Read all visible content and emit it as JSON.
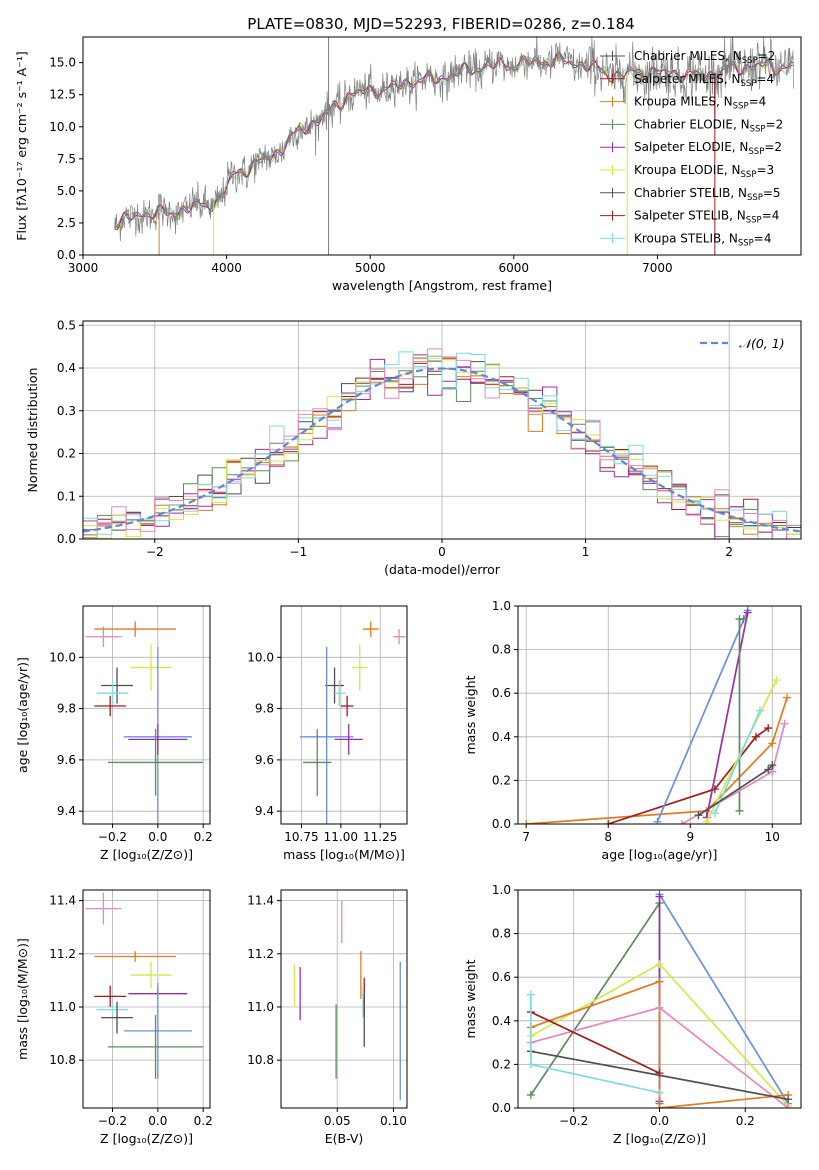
{
  "figure_title": "PLATE=0830, MJD=52293, FIBERID=0286, z=0.184",
  "colors": {
    "MILES_Chabrier": "#4f4f4f",
    "MILES_Salpeter": "#a01d1d",
    "MILES_Kroupa": "#e07b22",
    "ELODIE_Chabrier": "#5f8a5f",
    "ELODIE_Salpeter": "#9a2ca8",
    "ELODIE_Kroupa": "#d4e84a",
    "STELIB_Chabrier": "#555555",
    "STELIB_Salpeter": "#a01d1d",
    "STELIB_Kroupa": "#7fdadf",
    "gauss": "#5b88d8",
    "pink": "#e487c0",
    "blue": "#6a8fe0"
  },
  "chart_data": [
    {
      "id": "spectrum",
      "type": "line",
      "title": "PLATE=0830, MJD=52293, FIBERID=0286, z=0.184",
      "xlabel": "wavelength [Angstrom, rest frame]",
      "ylabel": "Flux [fλ10⁻¹⁷ erg cm⁻² s⁻¹ A⁻¹]",
      "xlim": [
        3000,
        8000
      ],
      "ylim": [
        0,
        17
      ],
      "xticks": [
        "3000",
        "4000",
        "5000",
        "6000",
        "7000"
      ],
      "yticks": [
        "0.0",
        "2.5",
        "5.0",
        "7.5",
        "10.0",
        "12.5",
        "15.0"
      ],
      "legend_position": "right",
      "legend": [
        {
          "label": "Chabrier MILES, N",
          "sub": "SSP",
          "suffix": "=2",
          "color": "#4f4f4f"
        },
        {
          "label": "Salpeter MILES, N",
          "sub": "SSP",
          "suffix": "=4",
          "color": "#a01d1d"
        },
        {
          "label": "Kroupa MILES, N",
          "sub": "SSP",
          "suffix": "=4",
          "color": "#e07b22"
        },
        {
          "label": "Chabrier ELODIE, N",
          "sub": "SSP",
          "suffix": "=2",
          "color": "#5f8a5f"
        },
        {
          "label": "Salpeter ELODIE, N",
          "sub": "SSP",
          "suffix": "=2",
          "color": "#9a2ca8"
        },
        {
          "label": "Kroupa ELODIE, N",
          "sub": "SSP",
          "suffix": "=3",
          "color": "#d4e84a"
        },
        {
          "label": "Chabrier STELIB, N",
          "sub": "SSP",
          "suffix": "=5",
          "color": "#555555"
        },
        {
          "label": "Salpeter STELIB, N",
          "sub": "SSP",
          "suffix": "=4",
          "color": "#a01d1d"
        },
        {
          "label": "Kroupa STELIB, N",
          "sub": "SSP",
          "suffix": "=4",
          "color": "#7fdadf"
        }
      ],
      "continuum": [
        [
          3220,
          2.4
        ],
        [
          3400,
          3.2
        ],
        [
          3600,
          3.3
        ],
        [
          3800,
          3.8
        ],
        [
          3950,
          4.2
        ],
        [
          4050,
          6.3
        ],
        [
          4200,
          7.0
        ],
        [
          4350,
          8.0
        ],
        [
          4500,
          9.6
        ],
        [
          4700,
          11.0
        ],
        [
          4850,
          12.5
        ],
        [
          5000,
          12.8
        ],
        [
          5150,
          13.0
        ],
        [
          5300,
          13.6
        ],
        [
          5500,
          13.8
        ],
        [
          5700,
          14.5
        ],
        [
          5900,
          14.8
        ],
        [
          6100,
          15.0
        ],
        [
          6300,
          15.2
        ],
        [
          6500,
          14.8
        ],
        [
          6700,
          14.0
        ],
        [
          6900,
          14.3
        ],
        [
          7100,
          14.2
        ],
        [
          7300,
          13.9
        ],
        [
          7500,
          14.5
        ],
        [
          7700,
          14.8
        ],
        [
          7900,
          14.6
        ]
      ]
    },
    {
      "id": "residual_hist",
      "type": "histogram",
      "xlabel": "(data-model)/error",
      "ylabel": "Normed distribution",
      "xlim": [
        -2.5,
        2.5
      ],
      "ylim": [
        0,
        0.51
      ],
      "xticks": [
        "−2",
        "−1",
        "0",
        "1",
        "2"
      ],
      "yticks": [
        "0.0",
        "0.1",
        "0.2",
        "0.3",
        "0.4",
        "0.5"
      ],
      "legend_label": "𝒩(0, 1)",
      "legend_position": "top-right",
      "bin_width": 0.1
    },
    {
      "id": "age_vs_Z",
      "type": "scatter",
      "xlabel": "Z [log₁₀(Z/Z⊙)]",
      "ylabel": "age  [log₁₀(age/yr)]",
      "xlim": [
        -0.33,
        0.23
      ],
      "ylim": [
        9.35,
        10.2
      ],
      "xticks": [
        "−0.2",
        "0.0",
        "0.2"
      ],
      "yticks": [
        "9.4",
        "9.6",
        "9.8",
        "10.0"
      ],
      "points": [
        {
          "x": -0.24,
          "y": 10.08,
          "xerr": 0.08,
          "yerr": 0.04,
          "color": "#e487c0"
        },
        {
          "x": -0.1,
          "y": 10.11,
          "xerr": 0.18,
          "yerr": 0.03,
          "color": "#e07b22"
        },
        {
          "x": -0.03,
          "y": 9.96,
          "xerr": 0.09,
          "yerr": 0.09,
          "color": "#d4e84a"
        },
        {
          "x": -0.18,
          "y": 9.89,
          "xerr": 0.07,
          "yerr": 0.07,
          "color": "#4f4f4f"
        },
        {
          "x": -0.2,
          "y": 9.86,
          "xerr": 0.07,
          "yerr": 0.05,
          "color": "#7fdadf"
        },
        {
          "x": -0.21,
          "y": 9.81,
          "xerr": 0.07,
          "yerr": 0.04,
          "color": "#a01d1d"
        },
        {
          "x": 0.0,
          "y": 9.69,
          "xerr": 0.15,
          "yerr": 0.35,
          "color": "#6a8fe0"
        },
        {
          "x": 0.0,
          "y": 9.68,
          "xerr": 0.13,
          "yerr": 0.06,
          "color": "#9a2ca8"
        },
        {
          "x": -0.01,
          "y": 9.59,
          "xerr": 0.21,
          "yerr": 0.13,
          "color": "#5f8a5f"
        }
      ]
    },
    {
      "id": "age_vs_mass",
      "type": "scatter",
      "xlabel": "mass [log₁₀(M/M⊙)]",
      "ylabel": "",
      "xlim": [
        10.62,
        11.42
      ],
      "ylim": [
        9.35,
        10.2
      ],
      "xticks": [
        "10.75",
        "11.00",
        "11.25"
      ],
      "yticks": [
        "9.4",
        "9.6",
        "9.8",
        "10.0"
      ],
      "points": [
        {
          "x": 11.37,
          "y": 10.08,
          "xerr": 0.04,
          "yerr": 0.03,
          "color": "#e487c0"
        },
        {
          "x": 11.19,
          "y": 10.11,
          "xerr": 0.05,
          "yerr": 0.03,
          "color": "#e07b22"
        },
        {
          "x": 11.12,
          "y": 9.96,
          "xerr": 0.05,
          "yerr": 0.09,
          "color": "#d4e84a"
        },
        {
          "x": 10.96,
          "y": 9.89,
          "xerr": 0.06,
          "yerr": 0.07,
          "color": "#4f4f4f"
        },
        {
          "x": 10.99,
          "y": 9.86,
          "xerr": 0.04,
          "yerr": 0.05,
          "color": "#7fdadf"
        },
        {
          "x": 11.04,
          "y": 9.81,
          "xerr": 0.04,
          "yerr": 0.04,
          "color": "#a01d1d"
        },
        {
          "x": 10.91,
          "y": 9.69,
          "xerr": 0.17,
          "yerr": 0.35,
          "color": "#6a8fe0"
        },
        {
          "x": 11.05,
          "y": 9.68,
          "xerr": 0.09,
          "yerr": 0.06,
          "color": "#9a2ca8"
        },
        {
          "x": 10.85,
          "y": 9.59,
          "xerr": 0.09,
          "yerr": 0.13,
          "color": "#5f8a5f"
        }
      ]
    },
    {
      "id": "weight_vs_age",
      "type": "line",
      "xlabel": "age  [log₁₀(age/yr)]",
      "ylabel": "mass weight",
      "xlim": [
        6.9,
        10.35
      ],
      "ylim": [
        0,
        1
      ],
      "xticks": [
        "7",
        "8",
        "9",
        "10"
      ],
      "yticks": [
        "0.0",
        "0.2",
        "0.4",
        "0.6",
        "0.8",
        "1.0"
      ],
      "series": [
        {
          "color": "#e07b22",
          "x": [
            7.0,
            9.2,
            10.0,
            10.18
          ],
          "y": [
            0.0,
            0.06,
            0.37,
            0.58
          ]
        },
        {
          "color": "#a01d1d",
          "x": [
            8.0,
            9.3,
            9.8,
            9.95
          ],
          "y": [
            0.0,
            0.16,
            0.4,
            0.44
          ]
        },
        {
          "color": "#6a8fe0",
          "x": [
            8.6,
            9.7
          ],
          "y": [
            0.01,
            0.98
          ]
        },
        {
          "color": "#9a2ca8",
          "x": [
            9.2,
            9.7
          ],
          "y": [
            0.03,
            0.97
          ]
        },
        {
          "color": "#5f8a5f",
          "x": [
            9.6,
            9.6,
            9.65
          ],
          "y": [
            0.06,
            0.94,
            0.94
          ]
        },
        {
          "color": "#d4e84a",
          "x": [
            9.2,
            10.05
          ],
          "y": [
            0.01,
            0.66
          ]
        },
        {
          "color": "#e487c0",
          "x": [
            8.9,
            10.0,
            10.15
          ],
          "y": [
            0.0,
            0.24,
            0.46
          ]
        },
        {
          "color": "#7fdadf",
          "x": [
            9.3,
            9.85
          ],
          "y": [
            0.05,
            0.52
          ]
        },
        {
          "color": "#4f4f4f",
          "x": [
            9.1,
            9.95,
            10.0
          ],
          "y": [
            0.04,
            0.25,
            0.27
          ]
        }
      ]
    },
    {
      "id": "mass_vs_Z",
      "type": "scatter",
      "xlabel": "Z [log₁₀(Z/Z⊙)]",
      "ylabel": "mass [log₁₀(M/M⊙)]",
      "xlim": [
        -0.33,
        0.23
      ],
      "ylim": [
        10.62,
        11.44
      ],
      "xticks": [
        "−0.2",
        "0.0",
        "0.2"
      ],
      "yticks": [
        "10.8",
        "11.0",
        "11.2",
        "11.4"
      ],
      "points": [
        {
          "x": -0.24,
          "y": 11.37,
          "xerr": 0.08,
          "yerr": 0.06,
          "color": "#e487c0"
        },
        {
          "x": -0.1,
          "y": 11.19,
          "xerr": 0.18,
          "yerr": 0.02,
          "color": "#e07b22"
        },
        {
          "x": -0.03,
          "y": 11.12,
          "xerr": 0.09,
          "yerr": 0.05,
          "color": "#d4e84a"
        },
        {
          "x": 0.0,
          "y": 11.05,
          "xerr": 0.13,
          "yerr": 0.02,
          "color": "#9a2ca8"
        },
        {
          "x": -0.21,
          "y": 11.04,
          "xerr": 0.07,
          "yerr": 0.04,
          "color": "#a01d1d"
        },
        {
          "x": -0.2,
          "y": 10.99,
          "xerr": 0.07,
          "yerr": 0.02,
          "color": "#7fdadf"
        },
        {
          "x": -0.18,
          "y": 10.96,
          "xerr": 0.07,
          "yerr": 0.06,
          "color": "#4f4f4f"
        },
        {
          "x": 0.0,
          "y": 10.91,
          "xerr": 0.15,
          "yerr": 0.18,
          "color": "#6a8fe0"
        },
        {
          "x": -0.01,
          "y": 10.85,
          "xerr": 0.21,
          "yerr": 0.12,
          "color": "#5f8a5f"
        }
      ]
    },
    {
      "id": "mass_vs_ebv",
      "type": "scatter",
      "xlabel": "E(B-V)",
      "ylabel": "",
      "xlim": [
        0.0,
        0.112
      ],
      "ylim": [
        10.62,
        11.44
      ],
      "xticks": [
        "0.05",
        "0.10"
      ],
      "yticks": [
        "10.8",
        "11.0",
        "11.2",
        "11.4"
      ],
      "points": [
        {
          "x": 0.054,
          "y": 11.32,
          "yerr": 0.08,
          "color": "#e487c0"
        },
        {
          "x": 0.071,
          "y": 11.12,
          "yerr": 0.09,
          "color": "#e07b22"
        },
        {
          "x": 0.012,
          "y": 11.08,
          "yerr": 0.08,
          "color": "#d4e84a"
        },
        {
          "x": 0.017,
          "y": 11.05,
          "yerr": 0.1,
          "color": "#9a2ca8"
        },
        {
          "x": 0.074,
          "y": 11.04,
          "yerr": 0.07,
          "color": "#a01d1d"
        },
        {
          "x": 0.073,
          "y": 11.02,
          "yerr": 0.06,
          "color": "#7fdadf"
        },
        {
          "x": 0.074,
          "y": 10.95,
          "yerr": 0.1,
          "color": "#4f4f4f"
        },
        {
          "x": 0.106,
          "y": 10.91,
          "yerr": 0.26,
          "color": "#6a8fe0"
        },
        {
          "x": 0.049,
          "y": 10.87,
          "yerr": 0.14,
          "color": "#5f8a5f"
        }
      ]
    },
    {
      "id": "weight_vs_Z",
      "type": "line",
      "xlabel": "Z [log₁₀(Z/Z⊙)]",
      "ylabel": "mass weight",
      "xlim": [
        -0.33,
        0.33
      ],
      "ylim": [
        0,
        1
      ],
      "xticks": [
        "−0.2",
        "0.0",
        "0.2"
      ],
      "yticks": [
        "0.0",
        "0.2",
        "0.4",
        "0.6",
        "0.8",
        "1.0"
      ],
      "series": [
        {
          "color": "#6a8fe0",
          "x": [
            0.0,
            0.3
          ],
          "y": [
            0.98,
            0.02
          ]
        },
        {
          "color": "#5f8a5f",
          "x": [
            -0.3,
            0.0,
            0.0
          ],
          "y": [
            0.06,
            0.94,
            0.02
          ]
        },
        {
          "color": "#9a2ca8",
          "x": [
            0.0,
            0.0
          ],
          "y": [
            0.97,
            0.03
          ]
        },
        {
          "color": "#d4e84a",
          "x": [
            -0.3,
            0.0,
            0.3
          ],
          "y": [
            0.33,
            0.66,
            0.01
          ]
        },
        {
          "color": "#e07b22",
          "x": [
            -0.3,
            0.0,
            0.0,
            0.3
          ],
          "y": [
            0.37,
            0.58,
            0.0,
            0.06
          ]
        },
        {
          "color": "#e487c0",
          "x": [
            -0.3,
            0.0,
            0.3
          ],
          "y": [
            0.3,
            0.46,
            0.0
          ]
        },
        {
          "color": "#a01d1d",
          "x": [
            -0.3,
            0.0
          ],
          "y": [
            0.44,
            0.16
          ]
        },
        {
          "color": "#4f4f4f",
          "x": [
            -0.3,
            0.3
          ],
          "y": [
            0.26,
            0.04
          ]
        },
        {
          "color": "#7fdadf",
          "x": [
            -0.3,
            -0.3,
            0.0
          ],
          "y": [
            0.52,
            0.2,
            0.07
          ]
        }
      ]
    }
  ]
}
